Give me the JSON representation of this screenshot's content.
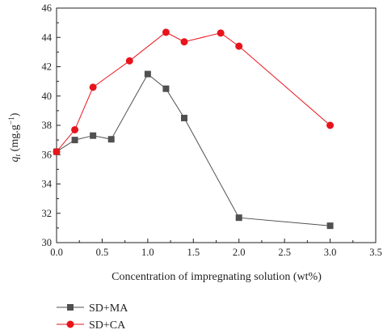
{
  "chart_data": {
    "type": "line",
    "xlabel": "Concentration of impregnating solution (wt%)",
    "ylabel": {
      "symbol": "q",
      "subscript": "t",
      "unit_open": " (mg.g",
      "unit_exp": "−1",
      "unit_close": ")"
    },
    "xlim": [
      0.0,
      3.5
    ],
    "ylim": [
      30,
      46
    ],
    "xticks": [
      "0.0",
      "0.5",
      "1.0",
      "1.5",
      "2.0",
      "2.5",
      "3.0",
      "3.5"
    ],
    "yticks": [
      "30",
      "32",
      "34",
      "36",
      "38",
      "40",
      "42",
      "44",
      "46"
    ],
    "grid": false,
    "legend_position": "bottom-left",
    "series": [
      {
        "name": "SD+MA",
        "color": "#505050",
        "marker": "square",
        "x": [
          0.0,
          0.2,
          0.4,
          0.6,
          1.0,
          1.2,
          1.4,
          2.0,
          3.0
        ],
        "y": [
          36.2,
          37.0,
          37.3,
          37.05,
          41.5,
          40.5,
          38.5,
          31.7,
          31.15
        ]
      },
      {
        "name": "SD+CA",
        "color": "#e8141c",
        "marker": "circle",
        "x": [
          0.0,
          0.2,
          0.4,
          0.8,
          1.2,
          1.4,
          1.8,
          2.0,
          3.0
        ],
        "y": [
          36.2,
          37.7,
          40.6,
          42.4,
          44.35,
          43.7,
          44.3,
          43.4,
          38.0
        ]
      }
    ]
  }
}
